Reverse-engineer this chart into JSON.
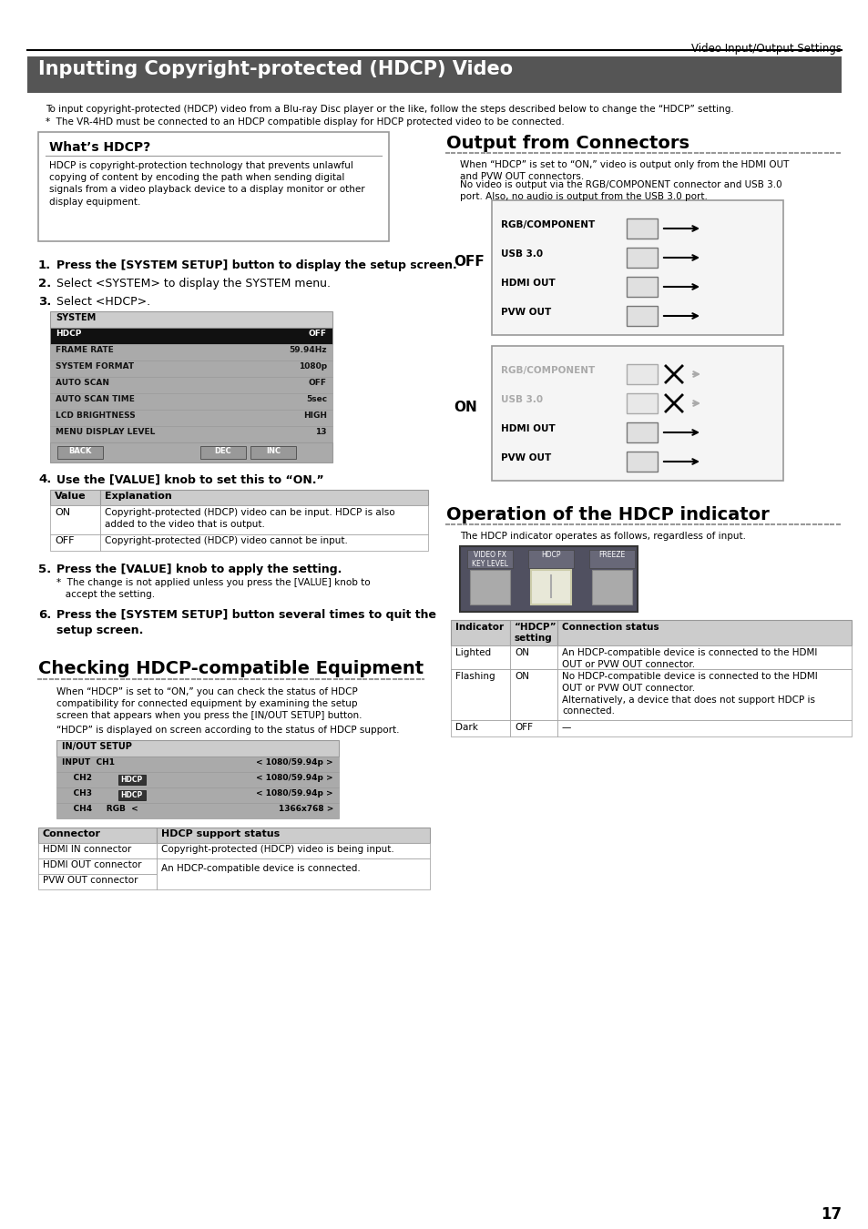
{
  "page_title": "Video Input/Output Settings",
  "main_title": "Inputting Copyright-protected (HDCP) Video",
  "main_title_bg": "#555555",
  "intro_text1": "To input copyright-protected (HDCP) video from a Blu-ray Disc player or the like, follow the steps described below to change the “HDCP” setting.",
  "intro_text2": "*  The VR-4HD must be connected to an HDCP compatible display for HDCP protected video to be connected.",
  "whats_hdcp_title": "What’s HDCP?",
  "whats_hdcp_body": "HDCP is copyright-protection technology that prevents unlawful\ncopying of content by encoding the path when sending digital\nsignals from a video playback device to a display monitor or other\ndisplay equipment.",
  "output_connectors_title": "Output from Connectors",
  "output_connectors_text1": "When “HDCP” is set to “ON,” video is output only from the HDMI OUT\nand PVW OUT connectors.",
  "output_connectors_text2": "No video is output via the RGB/COMPONENT connector and USB 3.0\nport. Also, no audio is output from the USB 3.0 port.",
  "steps_123": [
    [
      "1.",
      "Press the [SYSTEM SETUP] button to display the setup screen."
    ],
    [
      "2.",
      "Select <SYSTEM> to display the SYSTEM menu."
    ],
    [
      "3.",
      "Select <HDCP>."
    ]
  ],
  "system_menu_rows": [
    [
      "HDCP",
      "OFF",
      true
    ],
    [
      "FRAME RATE",
      "59.94Hz",
      false
    ],
    [
      "SYSTEM FORMAT",
      "1080p",
      false
    ],
    [
      "AUTO SCAN",
      "OFF",
      false
    ],
    [
      "AUTO SCAN TIME",
      "5sec",
      false
    ],
    [
      "LCD BRIGHTNESS",
      "HIGH",
      false
    ],
    [
      "MENU DISPLAY LEVEL",
      "13",
      false
    ]
  ],
  "value_table_headers": [
    "Value",
    "Explanation"
  ],
  "value_table_rows": [
    [
      "ON",
      "Copyright-protected (HDCP) video can be input. HDCP is also\nadded to the video that is output."
    ],
    [
      "OFF",
      "Copyright-protected (HDCP) video cannot be input."
    ]
  ],
  "step5_sub": "*  The change is not applied unless you press the [VALUE] knob to\n   accept the setting.",
  "checking_title": "Checking HDCP-compatible Equipment",
  "checking_text1": "When “HDCP” is set to “ON,” you can check the status of HDCP\ncompatibility for connected equipment by examining the setup\nscreen that appears when you press the [IN/OUT SETUP] button.",
  "checking_text2": "“HDCP” is displayed on screen according to the status of HDCP support.",
  "operation_title": "Operation of the HDCP indicator",
  "operation_text": "The HDCP indicator operates as follows, regardless of input.",
  "hdcp_table_headers": [
    "Indicator",
    "“HDCP”\nsetting",
    "Connection status"
  ],
  "hdcp_table_rows": [
    [
      "Lighted",
      "ON",
      "An HDCP-compatible device is connected to the HDMI\nOUT or PVW OUT connector."
    ],
    [
      "Flashing",
      "ON",
      "No HDCP-compatible device is connected to the HDMI\nOUT or PVW OUT connector.\nAlternatively, a device that does not support HDCP is\nconnected."
    ],
    [
      "Dark",
      "OFF",
      "—"
    ]
  ],
  "page_number": "17",
  "bg_color": "#ffffff",
  "text_color": "#000000",
  "section_dot_color": "#999999",
  "table_header_bg": "#cccccc",
  "menu_bg": "#aaaaaa",
  "menu_selected_bg": "#111111",
  "menu_selected_text": "#ffffff",
  "menu_title_bg": "#cccccc",
  "box_edge": "#999999",
  "off_box_bg": "#f5f5f5",
  "on_box_bg": "#f5f5f5"
}
